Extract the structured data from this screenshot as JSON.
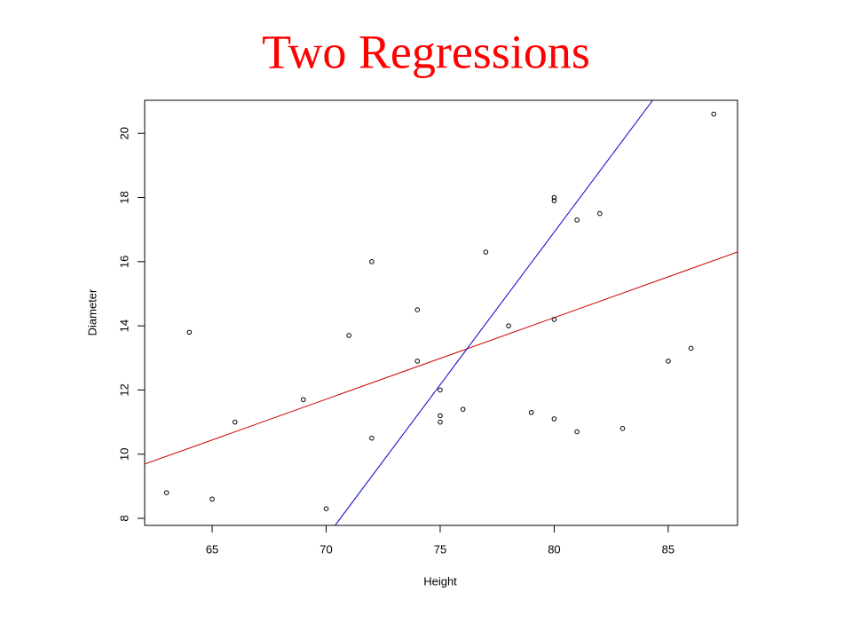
{
  "chart_data": {
    "type": "scatter",
    "title": "Two Regressions",
    "x_label": "Height",
    "y_label": "Diameter",
    "x": [
      63,
      64,
      65,
      66,
      69,
      70,
      71,
      72,
      72,
      74,
      74,
      75,
      75,
      75,
      76,
      77,
      78,
      79,
      80,
      80,
      80,
      80,
      81,
      81,
      82,
      83,
      85,
      86,
      87
    ],
    "values": [
      8.8,
      13.8,
      8.6,
      11.0,
      11.7,
      8.3,
      13.7,
      10.5,
      16.0,
      14.5,
      12.9,
      12.0,
      11.2,
      11.0,
      11.4,
      16.3,
      14.0,
      11.3,
      18.0,
      17.9,
      14.2,
      11.1,
      17.3,
      10.7,
      17.5,
      10.8,
      12.9,
      13.3,
      20.6
    ],
    "point_color": "#000000",
    "lines": [
      {
        "color": "#cc0000",
        "x": [
          62.04,
          88.04
        ],
        "values": [
          9.69,
          16.3
        ]
      },
      {
        "color": "#0000cc",
        "x": [
          70.39,
          84.32
        ],
        "values": [
          7.78,
          21.03
        ]
      }
    ],
    "xlim": [
      62.04,
      88.04
    ],
    "ylim": [
      7.78,
      21.03
    ],
    "xticks": [
      65,
      70,
      75,
      80,
      85
    ],
    "yticks": [
      8,
      10,
      12,
      14,
      16,
      18,
      20
    ],
    "grid": false
  }
}
